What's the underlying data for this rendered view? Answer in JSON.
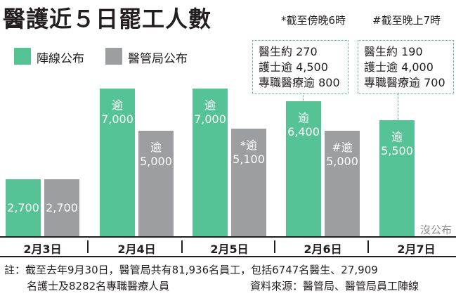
{
  "title": "醫護近５日罷工人數",
  "header_notes": {
    "star": "*截至傍晚6時",
    "hash": "#截至晚上7時"
  },
  "legend": [
    {
      "label": "陣線公布",
      "color": "#55c396"
    },
    {
      "label": "醫管局公布",
      "color": "#9d9e9f"
    }
  ],
  "callouts": [
    {
      "lines": [
        "醫生約 270",
        "護士逾 4,500",
        "專職醫療逾 800"
      ]
    },
    {
      "lines": [
        "醫生約 190",
        "護士逾 4,000",
        "專職醫療逾 700"
      ]
    }
  ],
  "no_data_label": "沒公布",
  "chart_data": {
    "type": "bar",
    "categories": [
      "2月3日",
      "2月4日",
      "2月5日",
      "2月6日",
      "2月7日"
    ],
    "series": [
      {
        "name": "陣線公布",
        "color": "#55c396",
        "values": [
          2700,
          7000,
          7000,
          6400,
          5500
        ],
        "labels": [
          {
            "prefix": "",
            "value": "2,700"
          },
          {
            "prefix": "逾",
            "value": "7,000"
          },
          {
            "prefix": "逾",
            "value": "7,000"
          },
          {
            "prefix": "逾",
            "value": "6,400"
          },
          {
            "prefix": "逾",
            "value": "5,500"
          }
        ]
      },
      {
        "name": "醫管局公布",
        "color": "#9d9e9f",
        "values": [
          2700,
          5000,
          5100,
          5000,
          null
        ],
        "labels": [
          {
            "prefix": "",
            "value": "2,700"
          },
          {
            "prefix": "逾",
            "value": "5,000"
          },
          {
            "prefix": "*逾",
            "value": "5,100"
          },
          {
            "prefix": "#逾",
            "value": "5,000"
          },
          null
        ]
      }
    ],
    "ylim": [
      0,
      8000
    ]
  },
  "footer": {
    "note_line1": "註：截至去年9月30日，醫管局共有81,936名員工，包括6747名醫生、27,909",
    "note_line2": "名護士及8282名專職醫療人員",
    "source": "資料來源：醫管局、醫管局員工陣線"
  }
}
